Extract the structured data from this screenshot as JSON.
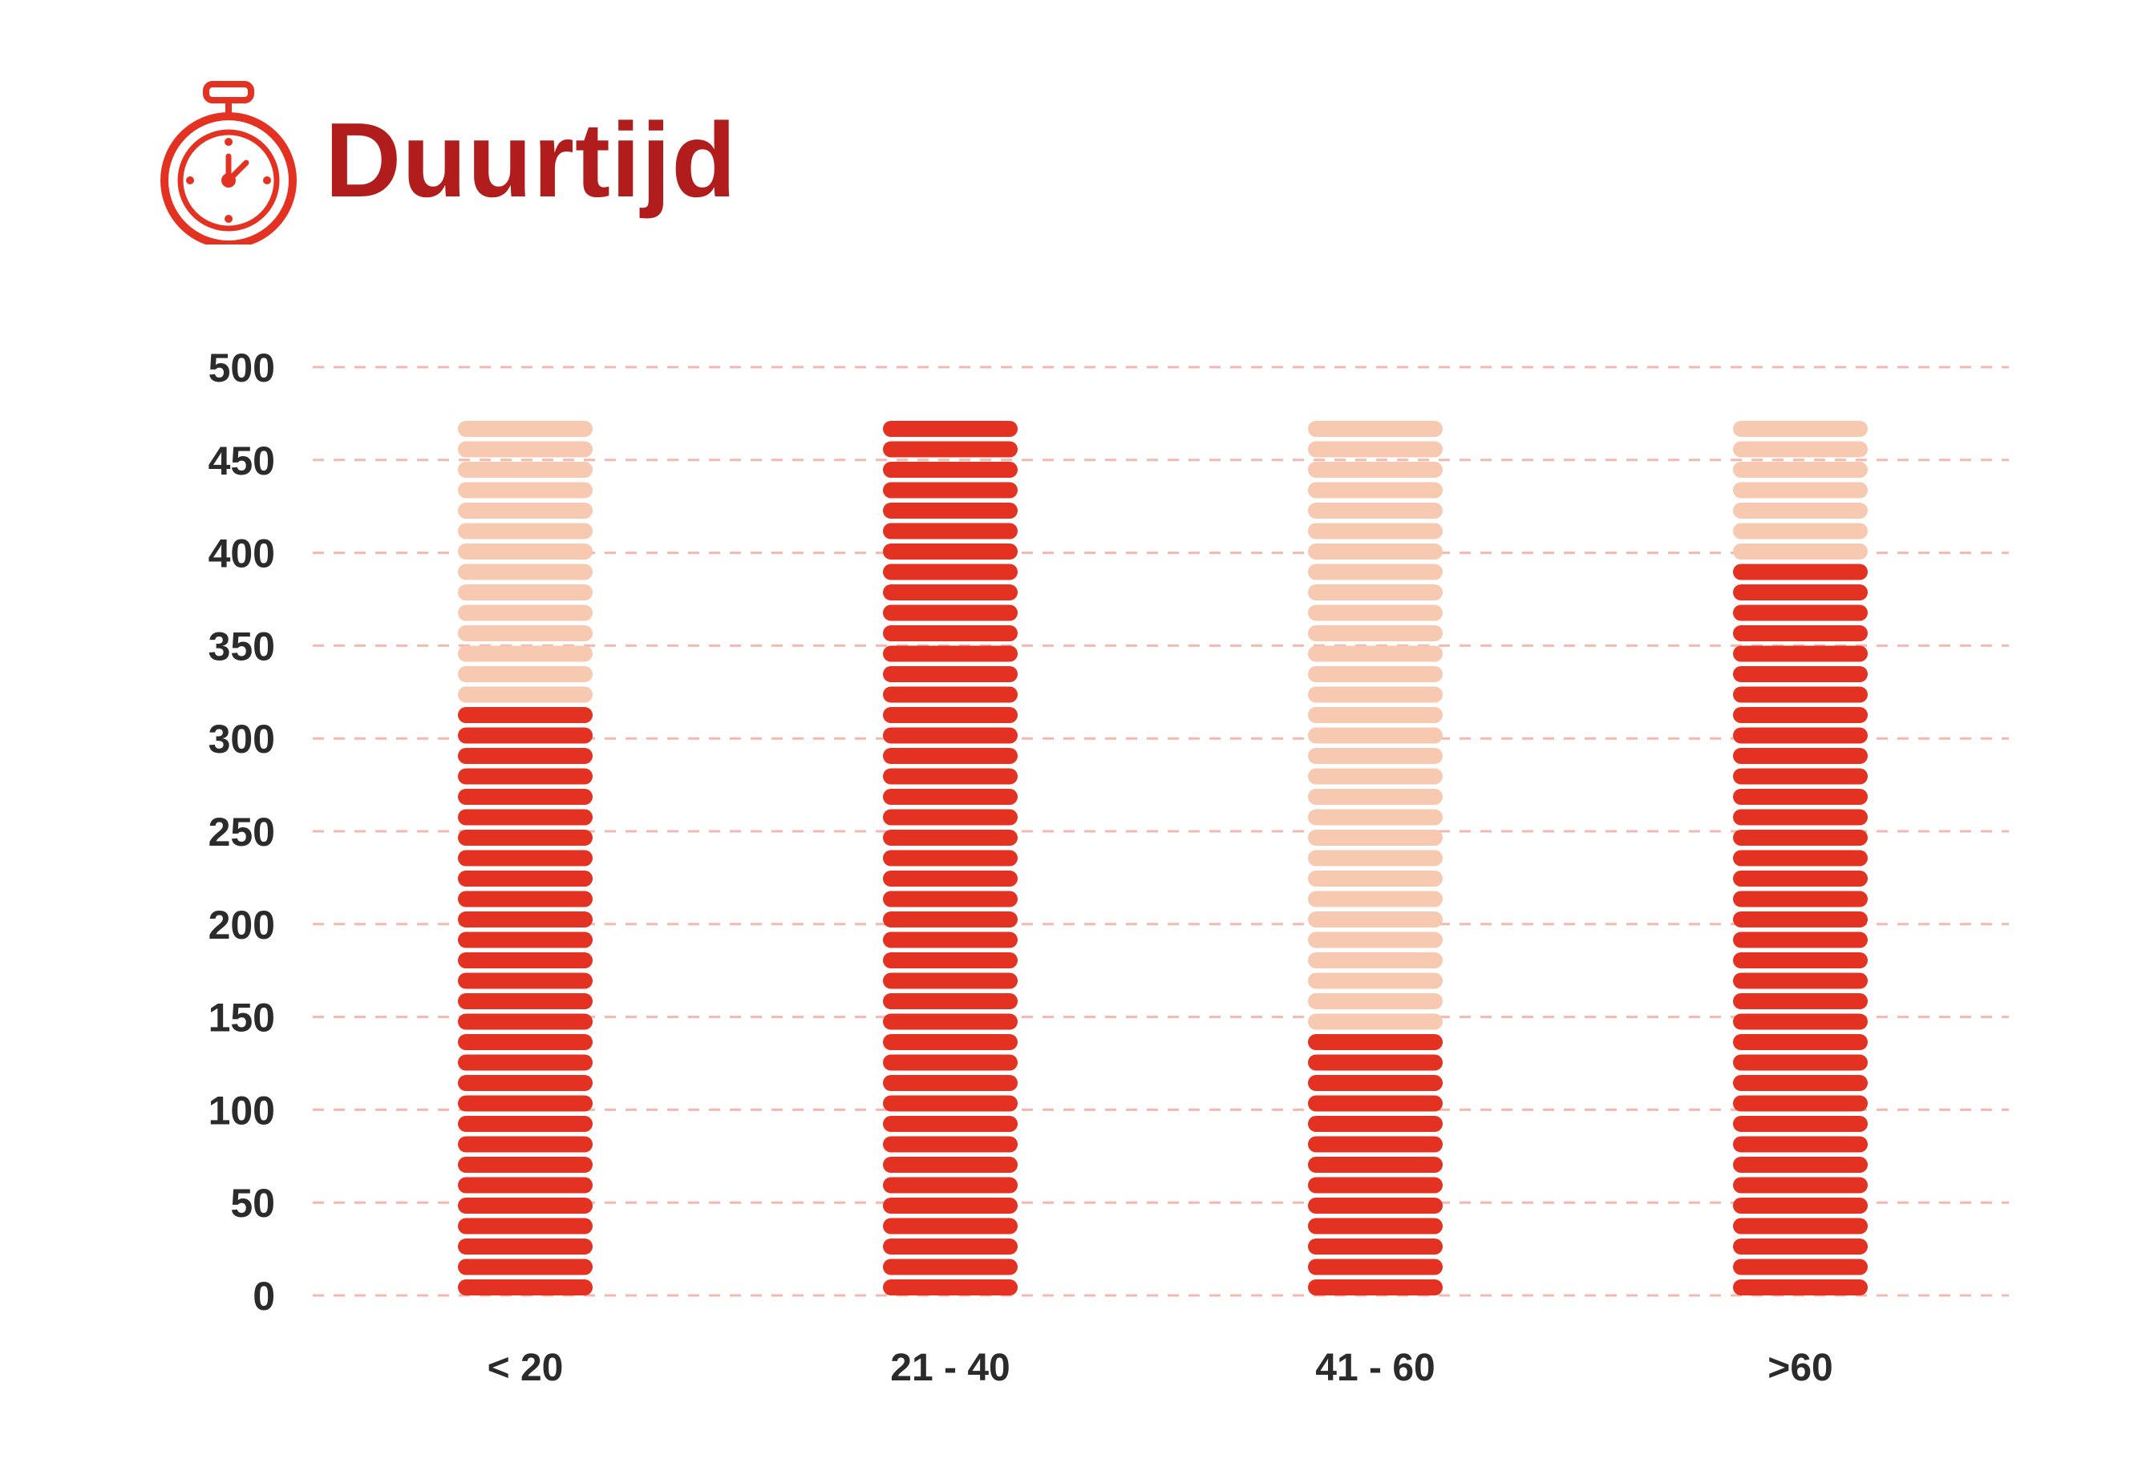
{
  "title": "Duurtijd",
  "chart_data": {
    "type": "bar",
    "categories": [
      "< 20",
      "21 - 40",
      "41 - 60",
      ">60"
    ],
    "series": [
      {
        "values": [
          315,
          470,
          140,
          392
        ]
      },
      {
        "values": [
          155,
          0,
          330,
          78
        ]
      }
    ],
    "ylim": [
      0,
      500
    ],
    "yticks": [
      0,
      50,
      100,
      150,
      200,
      250,
      300,
      350,
      400,
      450,
      500
    ],
    "grid": true,
    "colors": {
      "filled": "#e33221",
      "remaining": "#f8c9b1",
      "grid": "#f4b8b0",
      "title": "#b11c1c",
      "icon": "#e33221",
      "label": "#2b2b2b"
    }
  }
}
